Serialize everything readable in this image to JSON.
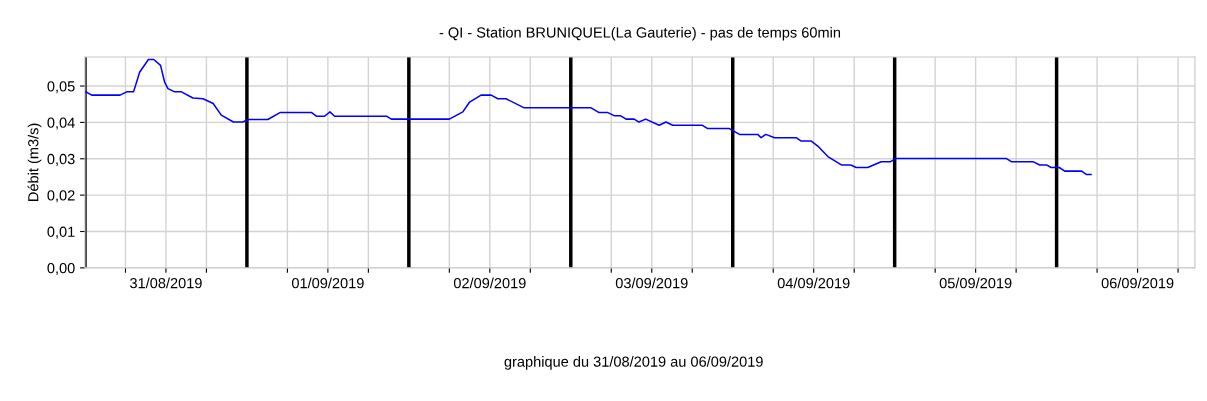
{
  "chart_data": {
    "type": "line",
    "title": "- QI - Station BRUNIQUEL(La Gauterie) - pas de temps 60min",
    "ylabel": "Débit (m3/s)",
    "annotations": [
      "graphique du 31/08/2019 au 06/09/2019"
    ],
    "xlim": [
      "2019-08-31T00:00",
      "2019-09-06T20:30"
    ],
    "xticks": [
      {
        "value": "2019-08-31T06:00",
        "label": null
      },
      {
        "value": "2019-08-31T12:00",
        "label": "31/08/2019"
      },
      {
        "value": "2019-08-31T18:00",
        "label": null
      },
      {
        "value": "2019-09-01T06:00",
        "label": null
      },
      {
        "value": "2019-09-01T12:00",
        "label": "01/09/2019"
      },
      {
        "value": "2019-09-01T18:00",
        "label": null
      },
      {
        "value": "2019-09-02T06:00",
        "label": null
      },
      {
        "value": "2019-09-02T12:00",
        "label": "02/09/2019"
      },
      {
        "value": "2019-09-02T18:00",
        "label": null
      },
      {
        "value": "2019-09-03T06:00",
        "label": null
      },
      {
        "value": "2019-09-03T12:00",
        "label": "03/09/2019"
      },
      {
        "value": "2019-09-03T18:00",
        "label": null
      },
      {
        "value": "2019-09-04T06:00",
        "label": null
      },
      {
        "value": "2019-09-04T12:00",
        "label": "04/09/2019"
      },
      {
        "value": "2019-09-04T18:00",
        "label": null
      },
      {
        "value": "2019-09-05T06:00",
        "label": null
      },
      {
        "value": "2019-09-05T12:00",
        "label": "05/09/2019"
      },
      {
        "value": "2019-09-05T18:00",
        "label": null
      },
      {
        "value": "2019-09-06T06:00",
        "label": null
      },
      {
        "value": "2019-09-06T12:00",
        "label": "06/09/2019"
      },
      {
        "value": "2019-09-06T18:00",
        "label": null
      }
    ],
    "ylim": [
      0,
      0.058
    ],
    "yticks": [
      {
        "value": 0,
        "label": "0,00"
      },
      {
        "value": 0.01,
        "label": "0,01"
      },
      {
        "value": 0.02,
        "label": "0,02"
      },
      {
        "value": 0.03,
        "label": "0,03"
      },
      {
        "value": 0.04,
        "label": "0,04"
      },
      {
        "value": 0.05,
        "label": "0,05"
      }
    ],
    "grid": true,
    "legend": false,
    "marker": "none",
    "line_style": "solid",
    "ref_lines": [
      {
        "axis": "x",
        "value": "2019-08-31T00:00",
        "color": "#000000"
      },
      {
        "axis": "x",
        "value": "2019-09-01T00:00",
        "color": "#000000"
      },
      {
        "axis": "x",
        "value": "2019-09-02T00:00",
        "color": "#000000"
      },
      {
        "axis": "x",
        "value": "2019-09-03T00:00",
        "color": "#000000"
      },
      {
        "axis": "x",
        "value": "2019-09-04T00:00",
        "color": "#000000"
      },
      {
        "axis": "x",
        "value": "2019-09-05T00:00",
        "color": "#000000"
      },
      {
        "axis": "x",
        "value": "2019-09-06T00:00",
        "color": "#000000"
      }
    ],
    "x": [
      "2019-08-31T00:09",
      "2019-08-31T01:00",
      "2019-08-31T05:12",
      "2019-08-31T06:12",
      "2019-08-31T07:12",
      "2019-08-31T08:06",
      "2019-08-31T09:24",
      "2019-08-31T10:12",
      "2019-08-31T11:12",
      "2019-08-31T11:48",
      "2019-08-31T12:18",
      "2019-08-31T13:18",
      "2019-08-31T14:18",
      "2019-08-31T16:00",
      "2019-08-31T17:30",
      "2019-08-31T19:00",
      "2019-08-31T20:12",
      "2019-08-31T22:00",
      "2019-08-31T23:24",
      "2019-09-01T00:12",
      "2019-09-01T03:06",
      "2019-09-01T04:54",
      "2019-09-01T09:36",
      "2019-09-01T10:18",
      "2019-09-01T11:30",
      "2019-09-01T12:18",
      "2019-09-01T13:00",
      "2019-09-01T20:42",
      "2019-09-01T21:24",
      "2019-09-02T06:00",
      "2019-09-02T08:00",
      "2019-09-02T09:00",
      "2019-09-02T10:42",
      "2019-09-02T12:12",
      "2019-09-02T13:12",
      "2019-09-02T14:24",
      "2019-09-02T17:06",
      "2019-09-03T03:00",
      "2019-09-03T04:12",
      "2019-09-03T05:30",
      "2019-09-03T06:30",
      "2019-09-03T07:24",
      "2019-09-03T08:12",
      "2019-09-03T09:24",
      "2019-09-03T10:06",
      "2019-09-03T11:06",
      "2019-09-03T13:06",
      "2019-09-03T14:06",
      "2019-09-03T15:06",
      "2019-09-03T19:30",
      "2019-09-03T20:18",
      "2019-09-03T23:30",
      "2019-09-04T01:00",
      "2019-09-04T03:42",
      "2019-09-04T04:12",
      "2019-09-04T04:54",
      "2019-09-04T06:12",
      "2019-09-04T09:24",
      "2019-09-04T10:06",
      "2019-09-04T11:36",
      "2019-09-04T12:36",
      "2019-09-04T14:06",
      "2019-09-04T16:06",
      "2019-09-04T17:30",
      "2019-09-04T18:18",
      "2019-09-04T20:00",
      "2019-09-04T22:00",
      "2019-09-04T23:24",
      "2019-09-05T00:12",
      "2019-09-05T16:30",
      "2019-09-05T17:18",
      "2019-09-05T20:30",
      "2019-09-05T21:30",
      "2019-09-05T22:30",
      "2019-09-05T23:12",
      "2019-09-06T00:24",
      "2019-09-06T01:12",
      "2019-09-06T03:42",
      "2019-09-06T04:24",
      "2019-09-06T05:06"
    ],
    "series": [
      {
        "color": "#0000ff",
        "values": [
          0.0484,
          0.0475,
          0.0475,
          0.0484,
          0.0484,
          0.0538,
          0.0573,
          0.0573,
          0.0557,
          0.0511,
          0.0493,
          0.0484,
          0.0484,
          0.0467,
          0.0465,
          0.0452,
          0.042,
          0.0401,
          0.0401,
          0.0408,
          0.0408,
          0.0427,
          0.0427,
          0.0417,
          0.0417,
          0.0429,
          0.0417,
          0.0417,
          0.0409,
          0.0409,
          0.0429,
          0.0456,
          0.0475,
          0.0475,
          0.0465,
          0.0465,
          0.044,
          0.044,
          0.0427,
          0.0427,
          0.0418,
          0.0418,
          0.0409,
          0.0409,
          0.0401,
          0.0409,
          0.0392,
          0.0401,
          0.0392,
          0.0392,
          0.0383,
          0.0383,
          0.0367,
          0.0367,
          0.0358,
          0.0367,
          0.0358,
          0.0358,
          0.0349,
          0.0349,
          0.0335,
          0.0306,
          0.0283,
          0.0283,
          0.0276,
          0.0276,
          0.0292,
          0.0292,
          0.0301,
          0.0301,
          0.0292,
          0.0292,
          0.0283,
          0.0283,
          0.0276,
          0.0276,
          0.0266,
          0.0266,
          0.0257,
          0.0257
        ]
      }
    ]
  }
}
